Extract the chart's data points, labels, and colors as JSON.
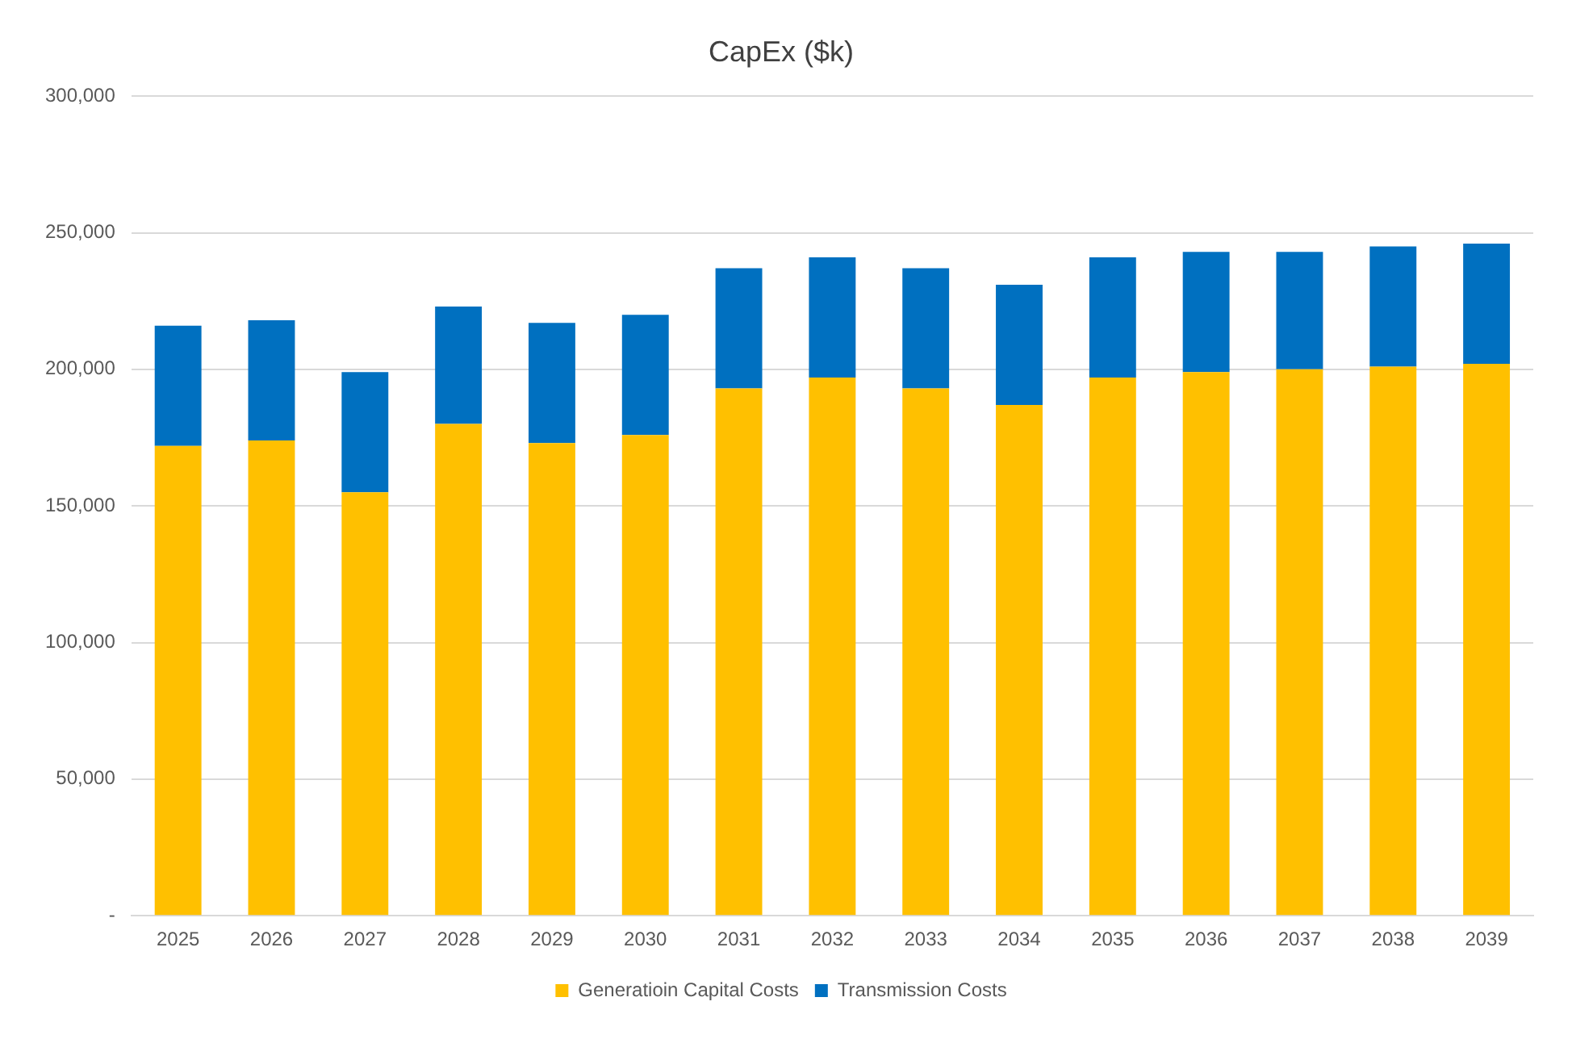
{
  "chart_data": {
    "type": "bar",
    "title": "CapEx ($k)",
    "stacked": true,
    "categories": [
      "2025",
      "2026",
      "2027",
      "2028",
      "2029",
      "2030",
      "2031",
      "2032",
      "2033",
      "2034",
      "2035",
      "2036",
      "2037",
      "2038",
      "2039"
    ],
    "series": [
      {
        "name": "Generatioin Capital Costs",
        "color": "#ffc000",
        "values": [
          172000,
          174000,
          155000,
          180000,
          173000,
          176000,
          193000,
          197000,
          193000,
          187000,
          197000,
          199000,
          200000,
          201000,
          202000
        ]
      },
      {
        "name": "Transmission Costs",
        "color": "#0070c0",
        "values": [
          44000,
          44000,
          44000,
          43000,
          44000,
          44000,
          44000,
          44000,
          44000,
          44000,
          44000,
          44000,
          43000,
          44000,
          44000
        ]
      }
    ],
    "ylim": [
      0,
      300000
    ],
    "yticks": [
      {
        "value": 0,
        "label": "-"
      },
      {
        "value": 50000,
        "label": "50,000"
      },
      {
        "value": 100000,
        "label": "100,000"
      },
      {
        "value": 150000,
        "label": "150,000"
      },
      {
        "value": 200000,
        "label": "200,000"
      },
      {
        "value": 250000,
        "label": "250,000"
      },
      {
        "value": 300000,
        "label": "300,000"
      }
    ],
    "grid": "y",
    "legend": "bottom"
  }
}
